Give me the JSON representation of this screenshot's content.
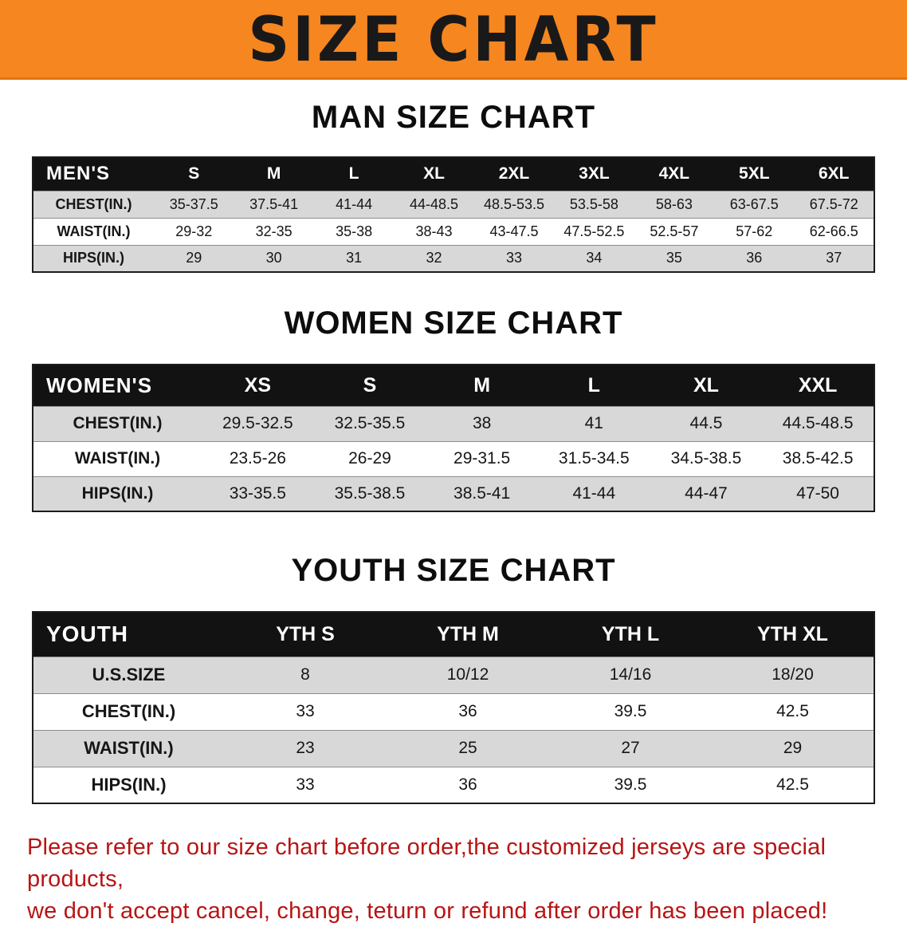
{
  "banner": {
    "title": "SIZE CHART"
  },
  "colors": {
    "banner-orange": "#F6861F",
    "header-bg": "#121212",
    "row-gray": "#D8D8D8",
    "footer-red": "#B81414"
  },
  "chart_data": [
    {
      "type": "table",
      "title": "MAN SIZE CHART",
      "header": [
        "MEN'S",
        "S",
        "M",
        "L",
        "XL",
        "2XL",
        "3XL",
        "4XL",
        "5XL",
        "6XL"
      ],
      "rows": [
        {
          "label": "CHEST(IN.)",
          "values": [
            "35-37.5",
            "37.5-41",
            "41-44",
            "44-48.5",
            "48.5-53.5",
            "53.5-58",
            "58-63",
            "63-67.5",
            "67.5-72"
          ]
        },
        {
          "label": "WAIST(IN.)",
          "values": [
            "29-32",
            "32-35",
            "35-38",
            "38-43",
            "43-47.5",
            "47.5-52.5",
            "52.5-57",
            "57-62",
            "62-66.5"
          ]
        },
        {
          "label": "HIPS(IN.)",
          "values": [
            "29",
            "30",
            "31",
            "32",
            "33",
            "34",
            "35",
            "36",
            "37"
          ]
        }
      ]
    },
    {
      "type": "table",
      "title": "WOMEN SIZE CHART",
      "header": [
        "WOMEN'S",
        "XS",
        "S",
        "M",
        "L",
        "XL",
        "XXL"
      ],
      "rows": [
        {
          "label": "CHEST(IN.)",
          "values": [
            "29.5-32.5",
            "32.5-35.5",
            "38",
            "41",
            "44.5",
            "44.5-48.5"
          ]
        },
        {
          "label": "WAIST(IN.)",
          "values": [
            "23.5-26",
            "26-29",
            "29-31.5",
            "31.5-34.5",
            "34.5-38.5",
            "38.5-42.5"
          ]
        },
        {
          "label": "HIPS(IN.)",
          "values": [
            "33-35.5",
            "35.5-38.5",
            "38.5-41",
            "41-44",
            "44-47",
            "47-50"
          ]
        }
      ]
    },
    {
      "type": "table",
      "title": "YOUTH SIZE CHART",
      "header": [
        "YOUTH",
        "YTH S",
        "YTH M",
        "YTH L",
        "YTH XL"
      ],
      "rows": [
        {
          "label": "U.S.SIZE",
          "values": [
            "8",
            "10/12",
            "14/16",
            "18/20"
          ]
        },
        {
          "label": "CHEST(IN.)",
          "values": [
            "33",
            "36",
            "39.5",
            "42.5"
          ]
        },
        {
          "label": "WAIST(IN.)",
          "values": [
            "23",
            "25",
            "27",
            "29"
          ]
        },
        {
          "label": "HIPS(IN.)",
          "values": [
            "33",
            "36",
            "39.5",
            "42.5"
          ]
        }
      ]
    }
  ],
  "footer": {
    "line1": "Please refer to our size chart before order,the customized jerseys are special products,",
    "line2": "we don't accept cancel, change, teturn or refund after order has been placed!"
  }
}
